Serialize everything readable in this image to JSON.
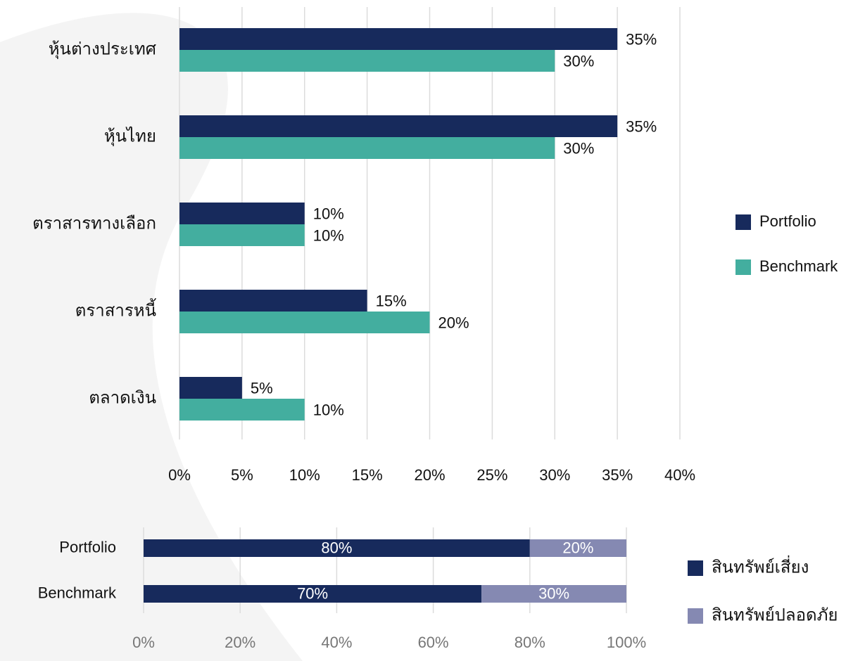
{
  "chart_data": [
    {
      "type": "bar",
      "orientation": "horizontal",
      "categories": [
        "หุ้นต่างประเทศ",
        "หุ้นไทย",
        "ตราสารทางเลือก",
        "ตราสารหนี้",
        "ตลาดเงิน"
      ],
      "series": [
        {
          "name": "Portfolio",
          "color": "#172a5c",
          "values": [
            35,
            35,
            10,
            15,
            5
          ],
          "value_labels": [
            "35%",
            "35%",
            "10%",
            "15%",
            "5%"
          ]
        },
        {
          "name": "Benchmark",
          "color": "#43ae9f",
          "values": [
            30,
            30,
            10,
            20,
            10
          ],
          "value_labels": [
            "30%",
            "30%",
            "10%",
            "20%",
            "10%"
          ]
        }
      ],
      "xlim": [
        0,
        40
      ],
      "xticks": [
        {
          "value": 0,
          "label": "0%"
        },
        {
          "value": 5,
          "label": "5%"
        },
        {
          "value": 10,
          "label": "10%"
        },
        {
          "value": 15,
          "label": "15%"
        },
        {
          "value": 20,
          "label": "20%"
        },
        {
          "value": 25,
          "label": "25%"
        },
        {
          "value": 30,
          "label": "30%"
        },
        {
          "value": 35,
          "label": "35%"
        },
        {
          "value": 40,
          "label": "40%"
        }
      ],
      "grid": true,
      "legend": "right"
    },
    {
      "type": "stacked_bar",
      "orientation": "horizontal",
      "categories": [
        "Portfolio",
        "Benchmark"
      ],
      "series": [
        {
          "name": "สินทรัพย์เสี่ยง",
          "color": "#172a5c",
          "values": [
            80,
            70
          ],
          "value_labels": [
            "80%",
            "70%"
          ]
        },
        {
          "name": "สินทรัพย์ปลอดภัย",
          "color": "#8589b2",
          "values": [
            20,
            30
          ],
          "value_labels": [
            "20%",
            "30%"
          ]
        }
      ],
      "xlim": [
        0,
        100
      ],
      "xticks": [
        {
          "value": 0,
          "label": "0%"
        },
        {
          "value": 20,
          "label": "20%"
        },
        {
          "value": 40,
          "label": "40%"
        },
        {
          "value": 60,
          "label": "60%"
        },
        {
          "value": 80,
          "label": "80%"
        },
        {
          "value": 100,
          "label": "100%"
        }
      ],
      "grid": true,
      "legend": "right"
    }
  ]
}
